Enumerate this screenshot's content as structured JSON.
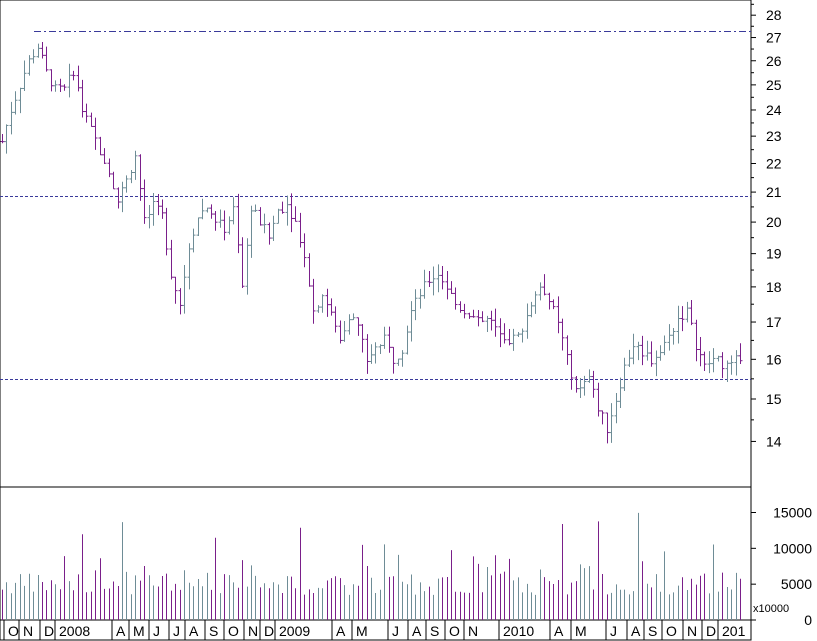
{
  "chart_data": {
    "type": "ohlc",
    "x_tick_labels": [
      "O",
      "N",
      "D",
      "2008",
      "A",
      "M",
      "J",
      "J",
      "A",
      "S",
      "O",
      "N",
      "D",
      "2009",
      "A",
      "M",
      "J",
      "A",
      "S",
      "O",
      "N",
      "2010",
      "A",
      "M",
      "J",
      "A",
      "S",
      "O",
      "N",
      "D",
      "201"
    ],
    "price_axis": {
      "ticks": [
        14,
        15,
        16,
        17,
        18,
        19,
        20,
        21,
        22,
        23,
        24,
        25,
        26,
        27,
        28
      ],
      "range": [
        13.0,
        28.7
      ],
      "scale": "log"
    },
    "volume_axis": {
      "ticks": [
        0,
        5000,
        10000,
        15000
      ],
      "tick_labels": [
        "0",
        "5000",
        "10000",
        "15000"
      ],
      "range": [
        0,
        18000
      ],
      "unit": "x10000"
    },
    "reference_lines": [
      {
        "value": 27.3,
        "style": "dash-dot"
      },
      {
        "value": 20.85,
        "style": "dotted"
      },
      {
        "value": 15.5,
        "style": "dotted"
      }
    ],
    "colors": {
      "up": "#6e8c96",
      "down": "#7a1f8a",
      "grid": "#000000",
      "ref_line": "#3a3a9a"
    },
    "close_path": [
      [
        0,
        22.8
      ],
      [
        4,
        24.0
      ],
      [
        8,
        25.0
      ],
      [
        12,
        26.0
      ],
      [
        16,
        26.6
      ],
      [
        20,
        25.5
      ],
      [
        24,
        24.8
      ],
      [
        28,
        24.8
      ],
      [
        32,
        25.6
      ],
      [
        36,
        24.0
      ],
      [
        40,
        23.2
      ],
      [
        44,
        22.5
      ],
      [
        48,
        21.8
      ],
      [
        52,
        20.7
      ],
      [
        56,
        21.4
      ],
      [
        60,
        22.3
      ],
      [
        64,
        20.0
      ],
      [
        68,
        20.5
      ],
      [
        72,
        20.2
      ],
      [
        76,
        18.4
      ],
      [
        80,
        17.5
      ],
      [
        84,
        19.2
      ],
      [
        88,
        20.2
      ],
      [
        92,
        20.5
      ],
      [
        96,
        20.0
      ],
      [
        100,
        19.8
      ],
      [
        104,
        20.4
      ],
      [
        108,
        18.0
      ],
      [
        112,
        20.5
      ],
      [
        116,
        20.0
      ],
      [
        120,
        19.5
      ],
      [
        124,
        20.4
      ],
      [
        128,
        20.6
      ],
      [
        132,
        20.0
      ],
      [
        136,
        19.0
      ],
      [
        140,
        17.3
      ],
      [
        144,
        17.8
      ],
      [
        148,
        17.2
      ],
      [
        152,
        16.5
      ],
      [
        156,
        17.2
      ],
      [
        160,
        16.9
      ],
      [
        164,
        16.0
      ],
      [
        168,
        16.3
      ],
      [
        172,
        16.5
      ],
      [
        176,
        16.0
      ],
      [
        180,
        16.3
      ],
      [
        184,
        17.3
      ],
      [
        188,
        17.8
      ],
      [
        192,
        18.2
      ],
      [
        196,
        18.4
      ],
      [
        200,
        18.0
      ],
      [
        204,
        17.5
      ],
      [
        208,
        17.3
      ],
      [
        212,
        17.2
      ],
      [
        216,
        17.1
      ],
      [
        220,
        17.0
      ],
      [
        224,
        16.8
      ],
      [
        228,
        16.5
      ],
      [
        232,
        16.6
      ],
      [
        236,
        17.2
      ],
      [
        240,
        17.8
      ],
      [
        244,
        17.9
      ],
      [
        248,
        17.3
      ],
      [
        252,
        16.5
      ],
      [
        256,
        15.5
      ],
      [
        260,
        15.2
      ],
      [
        264,
        15.5
      ],
      [
        268,
        14.8
      ],
      [
        272,
        14.3
      ],
      [
        276,
        15.0
      ],
      [
        280,
        15.8
      ],
      [
        284,
        16.4
      ],
      [
        288,
        16.2
      ],
      [
        292,
        16.0
      ],
      [
        296,
        16.2
      ],
      [
        300,
        16.6
      ],
      [
        304,
        17.1
      ],
      [
        308,
        17.3
      ],
      [
        312,
        16.4
      ],
      [
        316,
        15.8
      ],
      [
        320,
        16.0
      ],
      [
        324,
        15.9
      ],
      [
        328,
        15.8
      ],
      [
        332,
        16.1
      ]
    ]
  }
}
